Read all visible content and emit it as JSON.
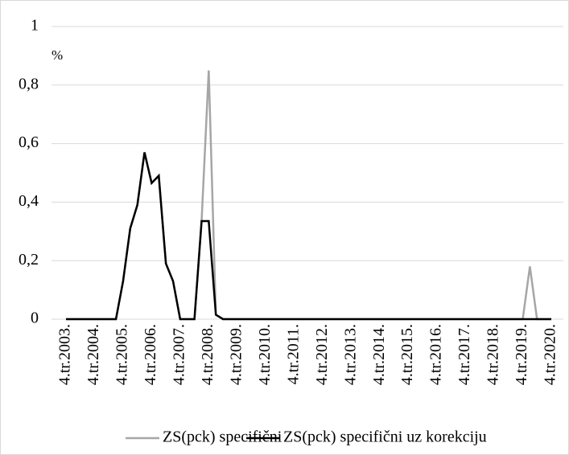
{
  "chart_data": {
    "type": "line",
    "y_unit_label": "%",
    "categories": [
      "4.tr.2003.",
      null,
      null,
      null,
      "4.tr.2004.",
      null,
      null,
      null,
      "4.tr.2005.",
      null,
      null,
      null,
      "4.tr.2006.",
      null,
      null,
      null,
      "4.tr.2007.",
      null,
      null,
      null,
      "4.tr.2008.",
      null,
      null,
      null,
      "4.tr.2009.",
      null,
      null,
      null,
      "4.tr.2010.",
      null,
      null,
      null,
      "4.tr.2011.",
      null,
      null,
      null,
      "4.tr.2012.",
      null,
      null,
      null,
      "4.tr.2013.",
      null,
      null,
      null,
      "4.tr.2014.",
      null,
      null,
      null,
      "4.tr.2015.",
      null,
      null,
      null,
      "4.tr.2016.",
      null,
      null,
      null,
      "4.tr.2017.",
      null,
      null,
      null,
      "4.tr.2018.",
      null,
      null,
      null,
      "4.tr.2019.",
      null,
      null,
      null,
      "4.tr.2020."
    ],
    "series": [
      {
        "name": "ZS(pck) specifični",
        "color": "#a6a6a6",
        "values": [
          0,
          0,
          0,
          0,
          0,
          0,
          0,
          0,
          0.13,
          0.31,
          0.39,
          0.57,
          0.465,
          0.49,
          0.19,
          0.13,
          0,
          0,
          0,
          0.335,
          0.85,
          0.015,
          0,
          0,
          0,
          0,
          0,
          0,
          0,
          0,
          0,
          0,
          0,
          0,
          0,
          0,
          0,
          0,
          0,
          0,
          0,
          0,
          0,
          0,
          0,
          0,
          0,
          0,
          0,
          0,
          0,
          0,
          0,
          0,
          0,
          0,
          0,
          0,
          0,
          0,
          0,
          0,
          0,
          0,
          0,
          0.18,
          0,
          0,
          0
        ]
      },
      {
        "name": "ZS(pck) specifični uz korekciju",
        "color": "#000000",
        "values": [
          0,
          0,
          0,
          0,
          0,
          0,
          0,
          0,
          0.13,
          0.31,
          0.39,
          0.57,
          0.465,
          0.49,
          0.19,
          0.13,
          0,
          0,
          0,
          0.335,
          0.335,
          0.015,
          0,
          0,
          0,
          0,
          0,
          0,
          0,
          0,
          0,
          0,
          0,
          0,
          0,
          0,
          0,
          0,
          0,
          0,
          0,
          0,
          0,
          0,
          0,
          0,
          0,
          0,
          0,
          0,
          0,
          0,
          0,
          0,
          0,
          0,
          0,
          0,
          0,
          0,
          0,
          0,
          0,
          0,
          0,
          0,
          0,
          0,
          0
        ]
      }
    ],
    "ylim": [
      0,
      1
    ],
    "yticks": [
      0,
      {
        "value": 0.2,
        "label": "0,2"
      },
      {
        "value": 0.4,
        "label": "0,4"
      },
      {
        "value": 0.6,
        "label": "0,6"
      },
      {
        "value": 0.8,
        "label": "0,8"
      },
      1
    ],
    "grid": true,
    "legend": "bottom"
  }
}
